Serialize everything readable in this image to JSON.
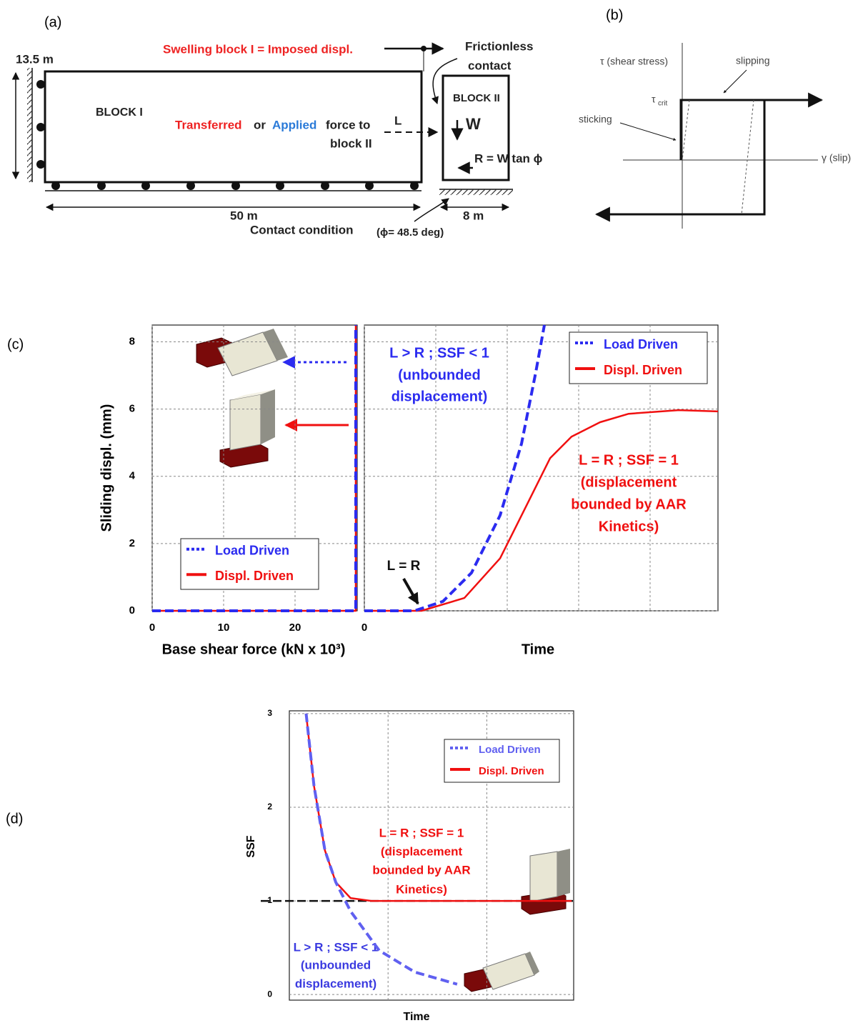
{
  "panel_labels": [
    "(a)",
    "(b)",
    "(c)",
    "(d)"
  ],
  "diagram_a": {
    "height_label": "13.5 m",
    "swelling": "Swelling block I = Imposed displ.",
    "frictionless": [
      "Frictionless",
      "contact"
    ],
    "block1": "BLOCK I",
    "block2": "BLOCK II",
    "transferred": "Transferred",
    "or": "or",
    "applied": "Applied",
    "force_to": "force to",
    "block_ii": "block II",
    "L": "L",
    "W": "W",
    "R": "R = W tan ϕ",
    "length1": "50 m",
    "length2": "8 m",
    "contact_condition": "Contact condition",
    "phi": "(ϕ= 48.5 deg)"
  },
  "diagram_b": {
    "tau": "τ (shear stress)",
    "slipping": "slipping",
    "tau_crit": "τ",
    "crit": "crit",
    "sticking": "sticking",
    "gamma": "γ (slip)"
  },
  "chart_data": [
    {
      "type": "line",
      "y_label": "Sliding displ. (mm)",
      "x_label": "Base shear force (kN x 10³)",
      "xlim": [
        0,
        28.7
      ],
      "ylim": [
        0,
        8.5
      ],
      "xticks": [
        0,
        10,
        20
      ],
      "yticks": [
        0,
        2,
        4,
        6,
        8
      ],
      "grid": true,
      "legend": "lower left",
      "series": [
        {
          "name": "Load Driven",
          "color": "#2b2bf0",
          "dashed": true,
          "x": [
            0,
            28.5,
            28.5
          ],
          "values": [
            0,
            0,
            8.5
          ]
        },
        {
          "name": "Displ. Driven",
          "color": "#f01010",
          "dashed": false,
          "x": [
            0,
            28.5,
            28.5
          ],
          "values": [
            0,
            0,
            8.5
          ]
        }
      ]
    },
    {
      "type": "line",
      "x_label": "Time",
      "xlim": [
        0,
        4.95
      ],
      "ylim": [
        0,
        8.5
      ],
      "xticks": [
        0
      ],
      "xgrid": [
        1,
        2,
        3,
        4
      ],
      "yticks": [
        0,
        2,
        4,
        6,
        8
      ],
      "ytick_labels": false,
      "grid": true,
      "legend": "upper right",
      "annotations": {
        "unbounded": [
          "L > R ; SSF < 1",
          "(unbounded",
          "displacement)"
        ],
        "bounded": [
          "L = R ; SSF = 1",
          "(displacement",
          "bounded by AAR",
          "Kinetics)"
        ],
        "equal": "L = R"
      },
      "series": [
        {
          "name": "Load Driven",
          "color": "#2b2bf0",
          "dashed": true,
          "x": [
            0,
            0.7,
            1.1,
            1.5,
            1.9,
            2.2,
            2.4,
            2.52
          ],
          "values": [
            0,
            0,
            0.28,
            1.13,
            2.84,
            4.97,
            7.1,
            8.5
          ]
        },
        {
          "name": "Displ. Driven",
          "color": "#f01010",
          "dashed": false,
          "x": [
            0,
            0.8,
            1.4,
            1.9,
            2.3,
            2.6,
            2.9,
            3.3,
            3.7,
            4.4,
            4.95
          ],
          "values": [
            0,
            0,
            0.38,
            1.56,
            3.26,
            4.54,
            5.18,
            5.61,
            5.86,
            5.97,
            5.93
          ]
        }
      ]
    },
    {
      "type": "line",
      "y_label": "SSF",
      "x_label": "Time",
      "xlim": [
        0,
        2.88
      ],
      "ylim": [
        -0.06,
        3.03
      ],
      "xgrid": [
        1,
        2
      ],
      "yticks": [
        0,
        1,
        2,
        3
      ],
      "grid": true,
      "hline": 1,
      "legend": "upper right",
      "annotations": {
        "bounded": [
          "L = R ; SSF = 1",
          "(displacement",
          "bounded by AAR",
          "Kinetics)"
        ],
        "unbounded": [
          "L > R ; SSF < 1",
          "(unbounded",
          "displacement)"
        ]
      },
      "series": [
        {
          "name": "Load Driven",
          "color": "#6060f0",
          "dashed": true,
          "x": [
            0.17,
            0.25,
            0.36,
            0.47,
            0.62,
            0.91,
            1.27,
            1.7
          ],
          "values": [
            3,
            2.23,
            1.54,
            1.2,
            0.89,
            0.47,
            0.24,
            0.11
          ]
        },
        {
          "name": "Displ. Driven",
          "color": "#f01010",
          "dashed": false,
          "x": [
            0.17,
            0.25,
            0.36,
            0.47,
            0.62,
            0.83,
            2.86
          ],
          "values": [
            3,
            2.23,
            1.54,
            1.2,
            1.03,
            1.0,
            1.0
          ]
        }
      ]
    }
  ]
}
